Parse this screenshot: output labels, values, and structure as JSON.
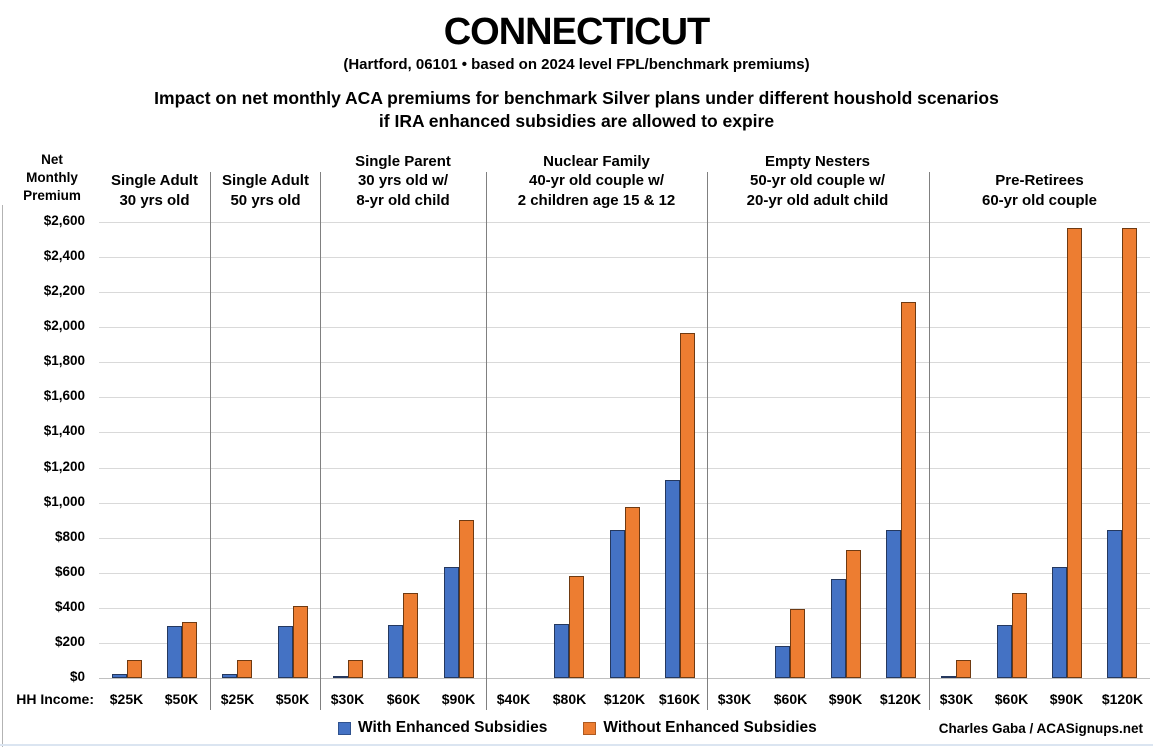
{
  "header": {
    "title": "CONNECTICUT",
    "subtitle": "(Hartford, 06101 • based on 2024 level FPL/benchmark premiums)",
    "description_line1": "Impact on net monthly ACA premiums for benchmark Silver plans under different houshold scenarios",
    "description_line2": "if IRA enhanced subsidies are allowed to expire"
  },
  "axis": {
    "y_title_lines": [
      "Net",
      "Monthly",
      "Premium"
    ],
    "x_row_label": "HH Income:"
  },
  "legend": {
    "items": [
      {
        "label": "With Enhanced Subsidies",
        "color": "#4472C4"
      },
      {
        "label": "Without Enhanced Subsidies",
        "color": "#ED7D31"
      }
    ]
  },
  "credit": "Charles Gaba / ACASignups.net",
  "colors": {
    "with_fill": "#4472C4",
    "without_fill": "#ED7D31",
    "gridline": "#d9d9d9",
    "divider": "#808080"
  },
  "chart_data": {
    "type": "bar",
    "title": "Impact on net monthly ACA premiums for benchmark Silver plans under different houshold scenarios if IRA enhanced subsidies are allowed to expire",
    "ylabel": "Net Monthly Premium",
    "xlabel": "HH Income",
    "ylim": [
      0,
      2600
    ],
    "ytick_step": 200,
    "ytick_values": [
      0,
      200,
      400,
      600,
      800,
      1000,
      1200,
      1400,
      1600,
      1800,
      2000,
      2200,
      2400,
      2600
    ],
    "ytick_labels": [
      "$0",
      "$200",
      "$400",
      "$600",
      "$800",
      "$1,000",
      "$1,200",
      "$1,400",
      "$1,600",
      "$1,800",
      "$2,000",
      "$2,200",
      "$2,400",
      "$2,600"
    ],
    "grid": true,
    "legend_position": "bottom",
    "series_names": [
      "With Enhanced Subsidies",
      "Without Enhanced Subsidies"
    ],
    "groups": [
      {
        "label_lines": [
          "Single Adult",
          "30 yrs old"
        ],
        "categories": [
          "$25K",
          "$50K"
        ],
        "with_enhanced_subsidies": [
          25,
          295
        ],
        "without_enhanced_subsidies": [
          105,
          320
        ]
      },
      {
        "label_lines": [
          "Single Adult",
          "50 yrs old"
        ],
        "categories": [
          "$25K",
          "$50K"
        ],
        "with_enhanced_subsidies": [
          25,
          295
        ],
        "without_enhanced_subsidies": [
          105,
          410
        ]
      },
      {
        "label_lines": [
          "Single Parent",
          "30 yrs old w/",
          "8-yr old child"
        ],
        "categories": [
          "$30K",
          "$60K",
          "$90K"
        ],
        "with_enhanced_subsidies": [
          8,
          305,
          635
        ],
        "without_enhanced_subsidies": [
          105,
          485,
          900
        ]
      },
      {
        "label_lines": [
          "Nuclear Family",
          "40-yr old couple w/",
          "2 children age 15 & 12"
        ],
        "categories": [
          "$40K",
          "$80K",
          "$120K",
          "$160K"
        ],
        "with_enhanced_subsidies": [
          0,
          310,
          845,
          1130
        ],
        "without_enhanced_subsidies": [
          0,
          580,
          975,
          1965
        ]
      },
      {
        "label_lines": [
          "Empty Nesters",
          "50-yr old couple w/",
          "20-yr old adult child"
        ],
        "categories": [
          "$30K",
          "$60K",
          "$90K",
          "$120K"
        ],
        "with_enhanced_subsidies": [
          0,
          180,
          565,
          845
        ],
        "without_enhanced_subsidies": [
          0,
          395,
          730,
          2145
        ]
      },
      {
        "label_lines": [
          "Pre-Retirees",
          "60-yr old couple"
        ],
        "categories": [
          "$30K",
          "$60K",
          "$90K",
          "$120K"
        ],
        "with_enhanced_subsidies": [
          10,
          305,
          635,
          845
        ],
        "without_enhanced_subsidies": [
          105,
          485,
          2565,
          2565
        ]
      }
    ]
  }
}
